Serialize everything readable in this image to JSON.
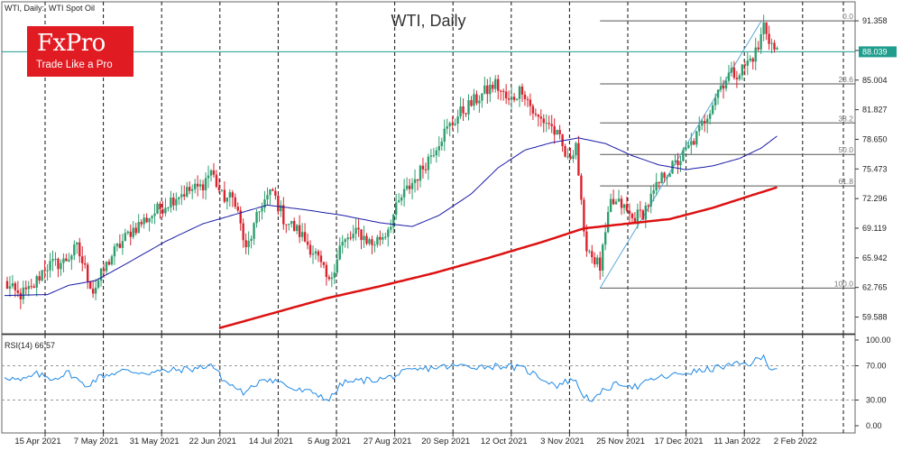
{
  "header": {
    "symbol_info": "WTI, Daily:  WTI Spot Oil",
    "title": "WTI, Daily",
    "rsi_label": "RSI(14) 66.57"
  },
  "logo": {
    "name": "FxPro",
    "tagline": "Trade Like a Pro",
    "color": "#e01b22"
  },
  "colors": {
    "up_candle": "#2e9e6e",
    "down_candle": "#d9232e",
    "ma_fast": "#1a1aa6",
    "ma_slow": "#dd1111",
    "rsi_line": "#1e88e5",
    "fib_line": "#555555",
    "current_price": "#1f9e8e",
    "trendline": "#5aa8d8"
  },
  "chart_data": {
    "type": "candlestick",
    "title": "WTI, Daily",
    "instrument": "WTI Spot Oil",
    "timeframe": "Daily",
    "ylim": [
      57.8,
      93.4
    ],
    "y_ticks": [
      "91.358",
      "88.181",
      "85.004",
      "81.827",
      "78.650",
      "75.473",
      "72.296",
      "69.119",
      "65.942",
      "62.765",
      "59.588"
    ],
    "x_ticks": [
      "15 Apr 2021",
      "7 May 2021",
      "31 May 2021",
      "22 Jun 2021",
      "14 Jul 2021",
      "5 Aug 2021",
      "27 Aug 2021",
      "20 Sep 2021",
      "12 Oct 2021",
      "3 Nov 2021",
      "25 Nov 2021",
      "17 Dec 2021",
      "11 Jan 2022",
      "2 Feb 2022"
    ],
    "current_price": "88.039",
    "fibonacci": {
      "high": 91.36,
      "low": 62.7,
      "levels": [
        {
          "label": "0.0",
          "ratio": 0.0
        },
        {
          "label": "23.6",
          "ratio": 0.236
        },
        {
          "label": "38.2",
          "ratio": 0.382
        },
        {
          "label": "50.0",
          "ratio": 0.5
        },
        {
          "label": "61.8",
          "ratio": 0.618
        },
        {
          "label": "100.0",
          "ratio": 1.0
        }
      ]
    },
    "trendline": {
      "from_bar": 222,
      "from_value": 62.7,
      "to_bar": 282,
      "to_value": 91.3
    },
    "anchors": [
      {
        "bar": 0,
        "value": 63.2
      },
      {
        "bar": 5,
        "value": 61.9
      },
      {
        "bar": 10,
        "value": 62.5
      },
      {
        "bar": 15,
        "value": 65.0
      },
      {
        "bar": 22,
        "value": 65.5
      },
      {
        "bar": 27,
        "value": 67.0
      },
      {
        "bar": 33,
        "value": 62.4
      },
      {
        "bar": 40,
        "value": 66.2
      },
      {
        "bar": 47,
        "value": 68.8
      },
      {
        "bar": 55,
        "value": 70.6
      },
      {
        "bar": 65,
        "value": 72.8
      },
      {
        "bar": 73,
        "value": 73.5
      },
      {
        "bar": 77,
        "value": 75.3
      },
      {
        "bar": 81,
        "value": 72.5
      },
      {
        "bar": 86,
        "value": 72.2
      },
      {
        "bar": 90,
        "value": 66.6
      },
      {
        "bar": 96,
        "value": 71.8
      },
      {
        "bar": 100,
        "value": 73.0
      },
      {
        "bar": 104,
        "value": 70.2
      },
      {
        "bar": 110,
        "value": 68.6
      },
      {
        "bar": 116,
        "value": 66.3
      },
      {
        "bar": 121,
        "value": 63.1
      },
      {
        "bar": 125,
        "value": 67.2
      },
      {
        "bar": 132,
        "value": 68.7
      },
      {
        "bar": 137,
        "value": 67.4
      },
      {
        "bar": 142,
        "value": 68.6
      },
      {
        "bar": 148,
        "value": 72.4
      },
      {
        "bar": 155,
        "value": 75.2
      },
      {
        "bar": 163,
        "value": 79.0
      },
      {
        "bar": 170,
        "value": 81.5
      },
      {
        "bar": 177,
        "value": 83.2
      },
      {
        "bar": 183,
        "value": 84.6
      },
      {
        "bar": 188,
        "value": 82.6
      },
      {
        "bar": 193,
        "value": 84.2
      },
      {
        "bar": 198,
        "value": 81.0
      },
      {
        "bar": 203,
        "value": 80.4
      },
      {
        "bar": 207,
        "value": 78.5
      },
      {
        "bar": 210,
        "value": 76.2
      },
      {
        "bar": 213,
        "value": 78.4
      },
      {
        "bar": 216,
        "value": 68.0
      },
      {
        "bar": 219,
        "value": 66.2
      },
      {
        "bar": 222,
        "value": 64.9
      },
      {
        "bar": 226,
        "value": 71.8
      },
      {
        "bar": 230,
        "value": 71.6
      },
      {
        "bar": 234,
        "value": 70.1
      },
      {
        "bar": 238,
        "value": 70.8
      },
      {
        "bar": 242,
        "value": 72.8
      },
      {
        "bar": 246,
        "value": 75.0
      },
      {
        "bar": 250,
        "value": 75.9
      },
      {
        "bar": 254,
        "value": 77.3
      },
      {
        "bar": 258,
        "value": 79.0
      },
      {
        "bar": 262,
        "value": 81.4
      },
      {
        "bar": 266,
        "value": 84.0
      },
      {
        "bar": 270,
        "value": 85.6
      },
      {
        "bar": 274,
        "value": 85.9
      },
      {
        "bar": 278,
        "value": 87.2
      },
      {
        "bar": 281,
        "value": 88.4
      },
      {
        "bar": 283,
        "value": 91.0
      },
      {
        "bar": 285,
        "value": 89.5
      },
      {
        "bar": 287,
        "value": 88.2
      },
      {
        "bar": 288,
        "value": 88.0
      }
    ],
    "sma_fast": [
      {
        "bar": 0,
        "value": 61.9
      },
      {
        "bar": 16,
        "value": 62.0
      },
      {
        "bar": 24,
        "value": 63.0
      },
      {
        "bar": 34,
        "value": 63.5
      },
      {
        "bar": 46,
        "value": 65.4
      },
      {
        "bar": 60,
        "value": 67.7
      },
      {
        "bar": 74,
        "value": 69.6
      },
      {
        "bar": 86,
        "value": 70.6
      },
      {
        "bar": 98,
        "value": 71.6
      },
      {
        "bar": 112,
        "value": 71.1
      },
      {
        "bar": 126,
        "value": 70.5
      },
      {
        "bar": 140,
        "value": 69.7
      },
      {
        "bar": 152,
        "value": 69.3
      },
      {
        "bar": 162,
        "value": 70.5
      },
      {
        "bar": 174,
        "value": 72.8
      },
      {
        "bar": 184,
        "value": 75.6
      },
      {
        "bar": 194,
        "value": 77.5
      },
      {
        "bar": 204,
        "value": 78.3
      },
      {
        "bar": 214,
        "value": 78.8
      },
      {
        "bar": 224,
        "value": 78.2
      },
      {
        "bar": 234,
        "value": 76.9
      },
      {
        "bar": 244,
        "value": 75.9
      },
      {
        "bar": 254,
        "value": 75.4
      },
      {
        "bar": 264,
        "value": 75.8
      },
      {
        "bar": 274,
        "value": 76.6
      },
      {
        "bar": 282,
        "value": 77.7
      },
      {
        "bar": 288,
        "value": 79.0
      }
    ],
    "sma_slow": [
      {
        "bar": 80,
        "value": 58.4
      },
      {
        "bar": 100,
        "value": 60.0
      },
      {
        "bar": 120,
        "value": 61.6
      },
      {
        "bar": 140,
        "value": 62.9
      },
      {
        "bar": 160,
        "value": 64.3
      },
      {
        "bar": 180,
        "value": 65.9
      },
      {
        "bar": 200,
        "value": 67.6
      },
      {
        "bar": 216,
        "value": 69.1
      },
      {
        "bar": 232,
        "value": 69.6
      },
      {
        "bar": 248,
        "value": 70.1
      },
      {
        "bar": 264,
        "value": 71.3
      },
      {
        "bar": 278,
        "value": 72.6
      },
      {
        "bar": 288,
        "value": 73.5
      }
    ],
    "rsi": {
      "label": "RSI(14) 66.57",
      "last": 66.57,
      "levels": [
        30,
        70
      ],
      "ticks": [
        "100.00",
        "70.00",
        "30.00",
        "0.00"
      ],
      "anchors": [
        {
          "bar": 0,
          "value": 58
        },
        {
          "bar": 6,
          "value": 52
        },
        {
          "bar": 12,
          "value": 60
        },
        {
          "bar": 18,
          "value": 55
        },
        {
          "bar": 24,
          "value": 62
        },
        {
          "bar": 30,
          "value": 46
        },
        {
          "bar": 36,
          "value": 58
        },
        {
          "bar": 44,
          "value": 64
        },
        {
          "bar": 54,
          "value": 62
        },
        {
          "bar": 64,
          "value": 65
        },
        {
          "bar": 72,
          "value": 67
        },
        {
          "bar": 77,
          "value": 72
        },
        {
          "bar": 82,
          "value": 52
        },
        {
          "bar": 90,
          "value": 37
        },
        {
          "bar": 96,
          "value": 56
        },
        {
          "bar": 102,
          "value": 52
        },
        {
          "bar": 108,
          "value": 42
        },
        {
          "bar": 116,
          "value": 38
        },
        {
          "bar": 121,
          "value": 30
        },
        {
          "bar": 126,
          "value": 50
        },
        {
          "bar": 134,
          "value": 53
        },
        {
          "bar": 142,
          "value": 55
        },
        {
          "bar": 150,
          "value": 63
        },
        {
          "bar": 160,
          "value": 68
        },
        {
          "bar": 170,
          "value": 70
        },
        {
          "bar": 178,
          "value": 69
        },
        {
          "bar": 186,
          "value": 70
        },
        {
          "bar": 194,
          "value": 66
        },
        {
          "bar": 200,
          "value": 56
        },
        {
          "bar": 206,
          "value": 47
        },
        {
          "bar": 212,
          "value": 55
        },
        {
          "bar": 216,
          "value": 35
        },
        {
          "bar": 220,
          "value": 30
        },
        {
          "bar": 224,
          "value": 43
        },
        {
          "bar": 230,
          "value": 50
        },
        {
          "bar": 236,
          "value": 45
        },
        {
          "bar": 242,
          "value": 55
        },
        {
          "bar": 248,
          "value": 58
        },
        {
          "bar": 254,
          "value": 62
        },
        {
          "bar": 260,
          "value": 64
        },
        {
          "bar": 266,
          "value": 68
        },
        {
          "bar": 272,
          "value": 71
        },
        {
          "bar": 278,
          "value": 73
        },
        {
          "bar": 283,
          "value": 80
        },
        {
          "bar": 286,
          "value": 66
        },
        {
          "bar": 288,
          "value": 66.57
        }
      ]
    }
  }
}
